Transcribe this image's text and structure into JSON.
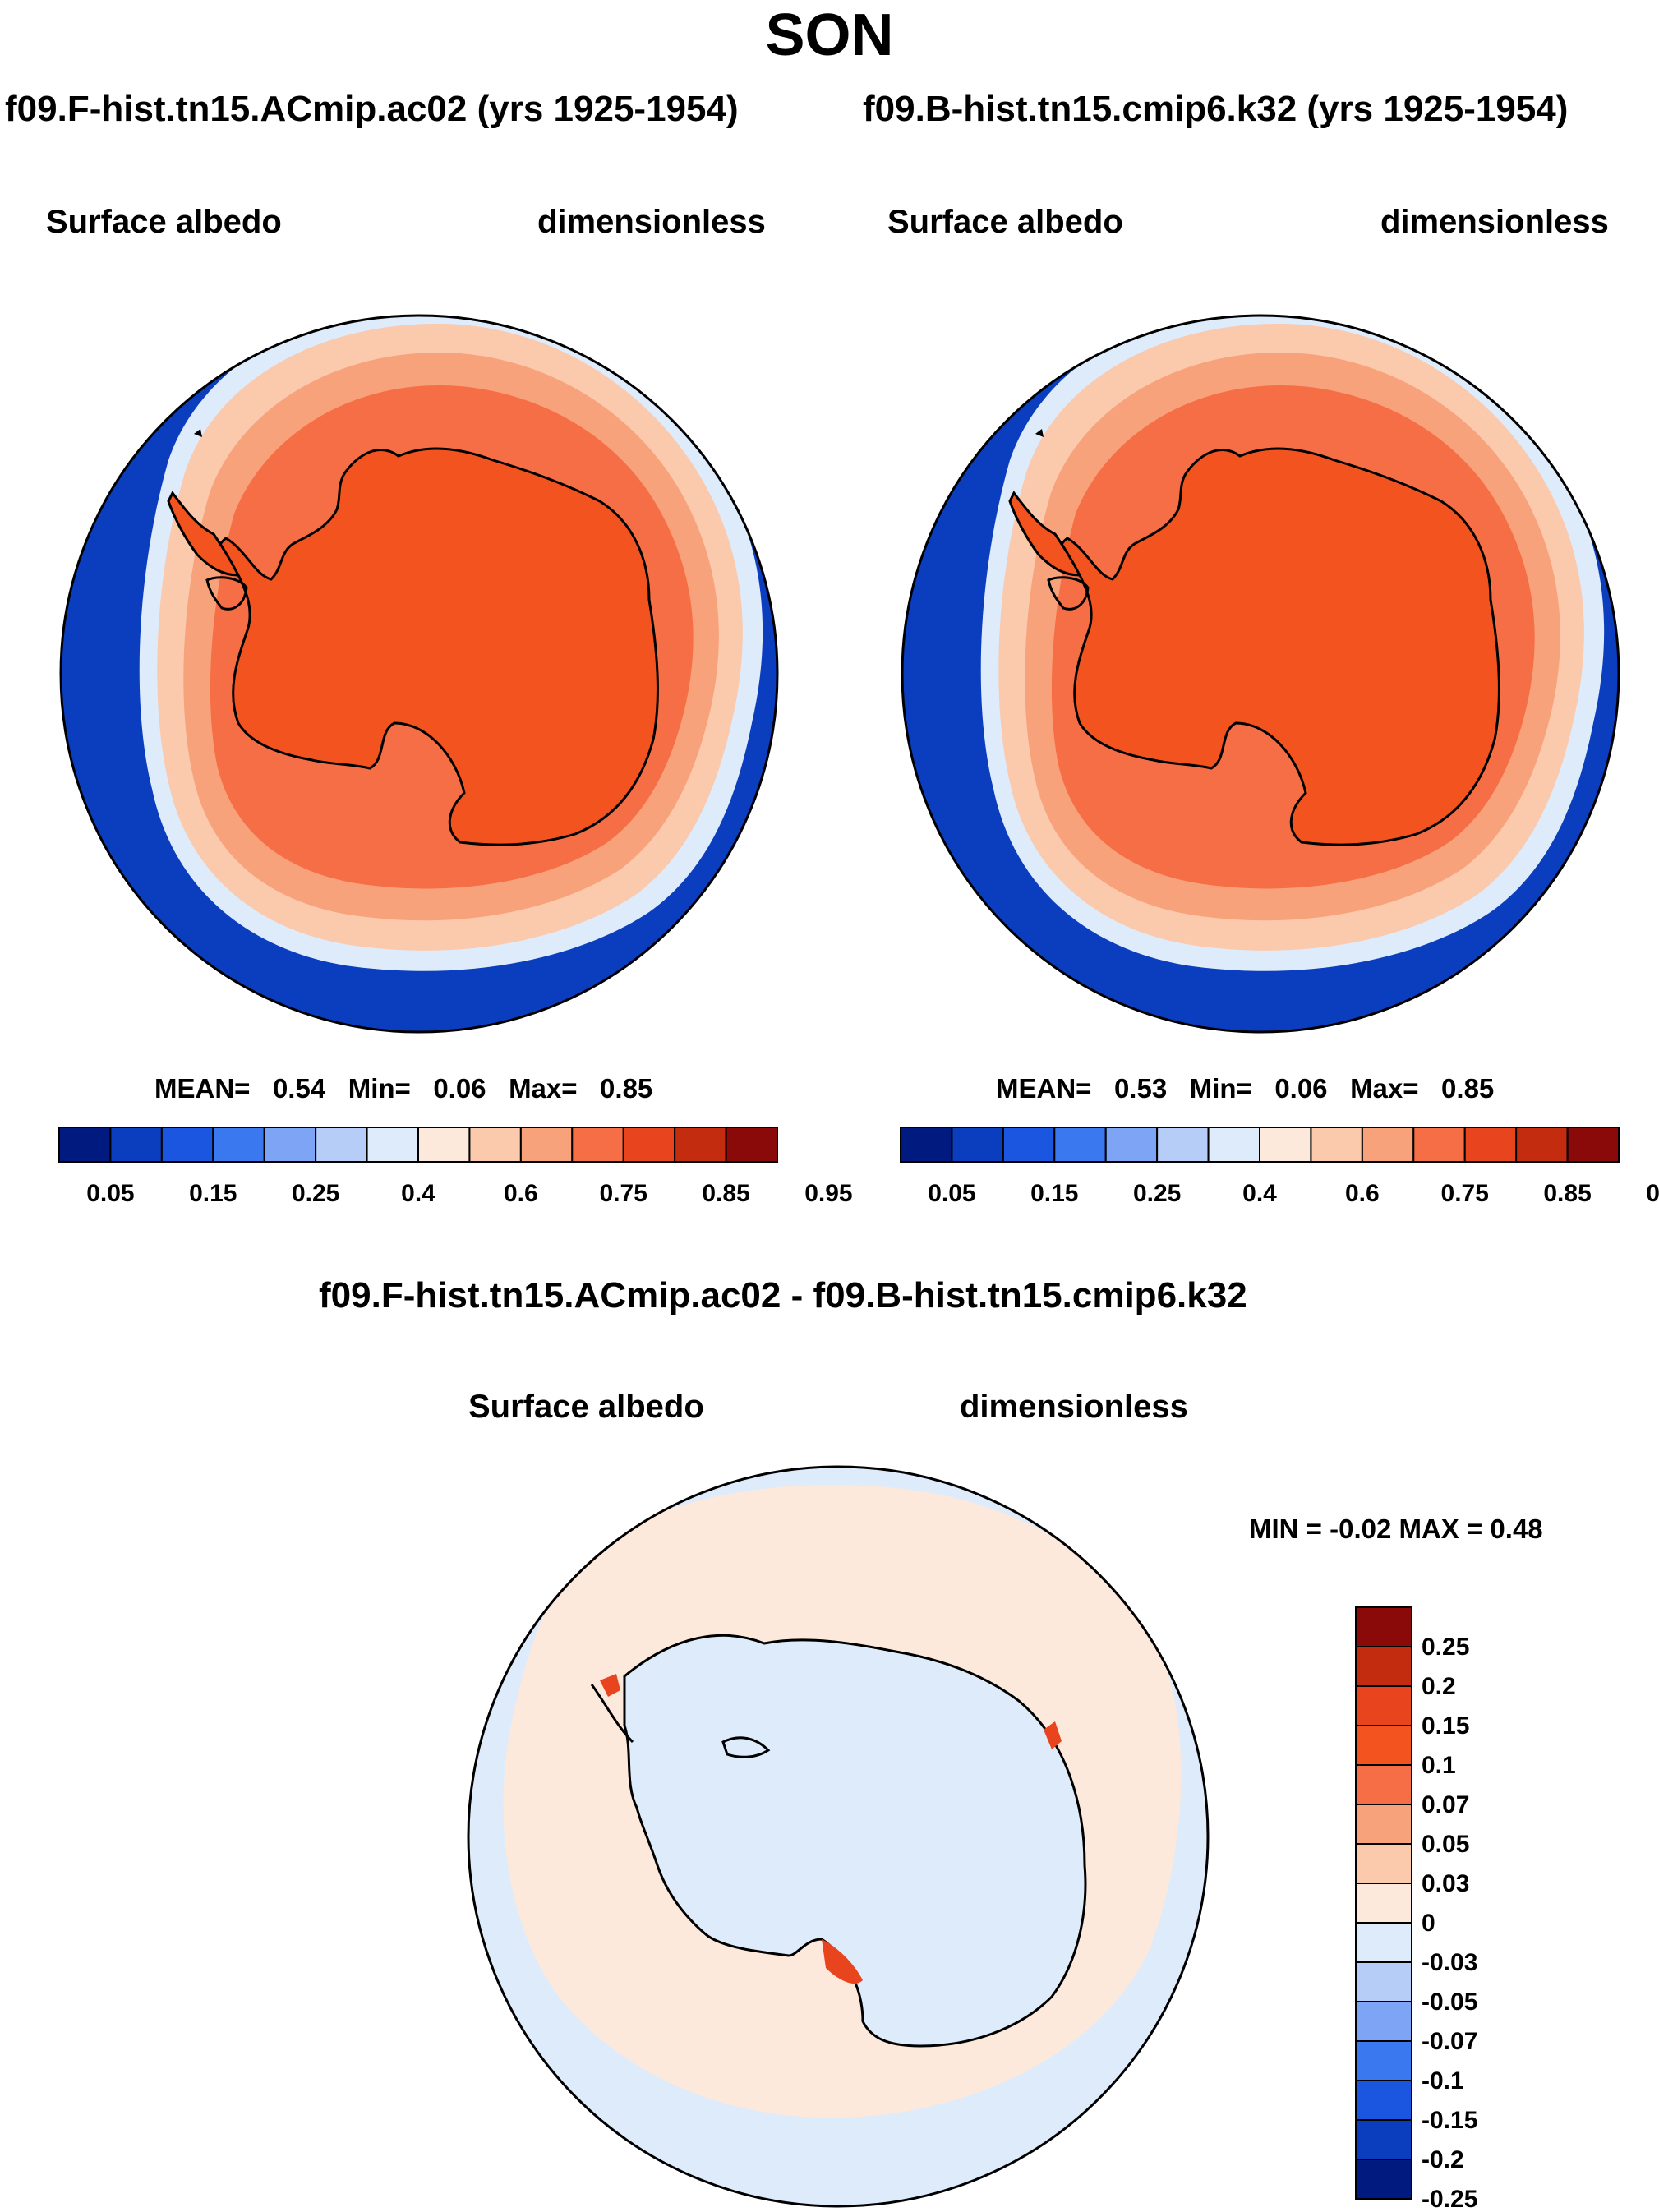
{
  "title": "SON",
  "panels": [
    {
      "case_title": "f09.F-hist.tn15.ACmip.ac02 (yrs 1925-1954)",
      "left_label": "Surface albedo",
      "right_label": "dimensionless",
      "stats": {
        "mean_label": "MEAN=",
        "mean": "0.54",
        "min_label": "Min=",
        "min": "0.06",
        "max_label": "Max=",
        "max": "0.85"
      }
    },
    {
      "case_title": "f09.B-hist.tn15.cmip6.k32 (yrs 1925-1954)",
      "left_label": "Surface albedo",
      "right_label": "dimensionless",
      "stats": {
        "mean_label": "MEAN=",
        "mean": "0.53",
        "min_label": "Min=",
        "min": "0.06",
        "max_label": "Max=",
        "max": "0.85"
      }
    }
  ],
  "diff_panel": {
    "title": "f09.F-hist.tn15.ACmip.ac02 - f09.B-hist.tn15.cmip6.k32",
    "left_label": "Surface albedo",
    "right_label": "dimensionless",
    "minmax_label": "MIN = -0.02 MAX = 0.48"
  },
  "colorbars": {
    "albedo": {
      "labels": [
        "0.05",
        "0.15",
        "0.25",
        "0.4",
        "0.6",
        "0.75",
        "0.85",
        "0.95"
      ],
      "colors": [
        "#001a80",
        "#0b3dbf",
        "#1a56e0",
        "#3a78f0",
        "#7ea4f5",
        "#b6cdf8",
        "#deebfb",
        "#fde9dc",
        "#fbc9ac",
        "#f8a27c",
        "#f56e45",
        "#e8441d",
        "#c32c0e",
        "#8a0a0a"
      ]
    },
    "diff": {
      "labels": [
        "0.25",
        "0.2",
        "0.15",
        "0.1",
        "0.07",
        "0.05",
        "0.03",
        "0",
        "-0.03",
        "-0.05",
        "-0.07",
        "-0.1",
        "-0.15",
        "-0.2",
        "-0.25"
      ],
      "colors": [
        "#8a0a0a",
        "#c32c0e",
        "#e8441d",
        "#f2531f",
        "#f56e45",
        "#f8a27c",
        "#fbc9ac",
        "#fde9dc",
        "#deebfb",
        "#b6cdf8",
        "#7ea4f5",
        "#3a78f0",
        "#1a56e0",
        "#0b3dbf",
        "#001a80"
      ]
    }
  },
  "map_colors": {
    "ocean_deep": "#0b3dbf",
    "ocean_mid": "#3a78f0",
    "ice_edge": "#deebfb",
    "ice_low": "#fbc9ac",
    "ice_mid": "#f8a27c",
    "ice_high": "#f56e45",
    "continent": "#f2531f",
    "diff_pos_small": "#fde9dc",
    "diff_neg_small": "#deebfb",
    "diff_pos_large": "#e8441d"
  }
}
